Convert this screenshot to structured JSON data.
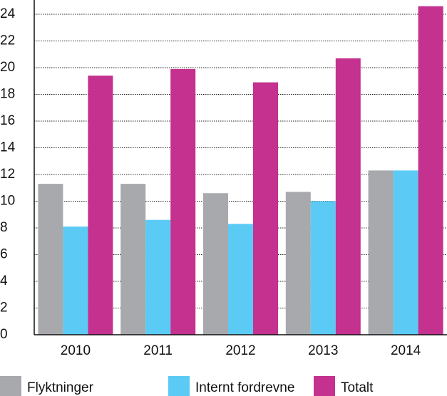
{
  "chart_data": {
    "type": "bar",
    "categories": [
      "2010",
      "2011",
      "2012",
      "2013",
      "2014"
    ],
    "series": [
      {
        "name": "Flyktninger",
        "color": "#a7a9ac",
        "values": [
          11.3,
          11.3,
          10.6,
          10.7,
          12.3
        ]
      },
      {
        "name": "Internt fordrevne",
        "color": "#5bcbf5",
        "values": [
          8.1,
          8.6,
          8.3,
          10.0,
          12.3
        ]
      },
      {
        "name": "Totalt",
        "color": "#c4318f",
        "values": [
          19.4,
          19.9,
          18.9,
          20.7,
          24.6
        ]
      }
    ],
    "ylim": [
      0,
      25
    ],
    "yticks": [
      0,
      2,
      4,
      6,
      8,
      10,
      12,
      14,
      16,
      18,
      20,
      22,
      24
    ],
    "grid": true,
    "legend": "bottom"
  }
}
